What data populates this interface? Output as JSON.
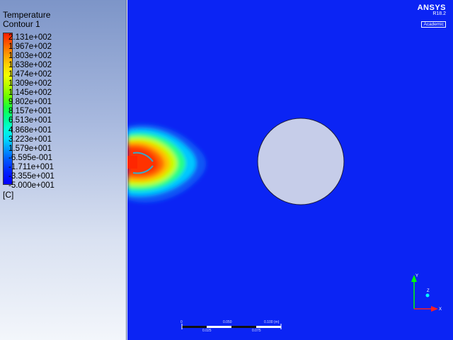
{
  "legend": {
    "title": "Temperature",
    "subtitle": "Contour 1",
    "ticks": [
      "2.131e+002",
      "1.967e+002",
      "1.803e+002",
      "1.638e+002",
      "1.474e+002",
      "1.309e+002",
      "1.145e+002",
      "9.802e+001",
      "8.157e+001",
      "6.513e+001",
      "4.868e+001",
      "3.223e+001",
      "1.579e+001",
      "-6.595e-001",
      "-1.711e+001",
      "-3.355e+001",
      "-5.000e+001"
    ],
    "units": "[C]"
  },
  "logo": {
    "brand": "ANSYS",
    "version": "R18.2",
    "edition": "Academic"
  },
  "scale_bar": {
    "labels": [
      "0",
      "0.050",
      "0.100 (m)",
      "0.025",
      "0.075"
    ]
  },
  "axis_triad": {
    "y_label": "Y",
    "z_label": "Z",
    "x_label": "X"
  },
  "colors": {
    "background_field": "#0b24f4",
    "obstacle": "#c6cde9",
    "hot": "#ff2600"
  }
}
